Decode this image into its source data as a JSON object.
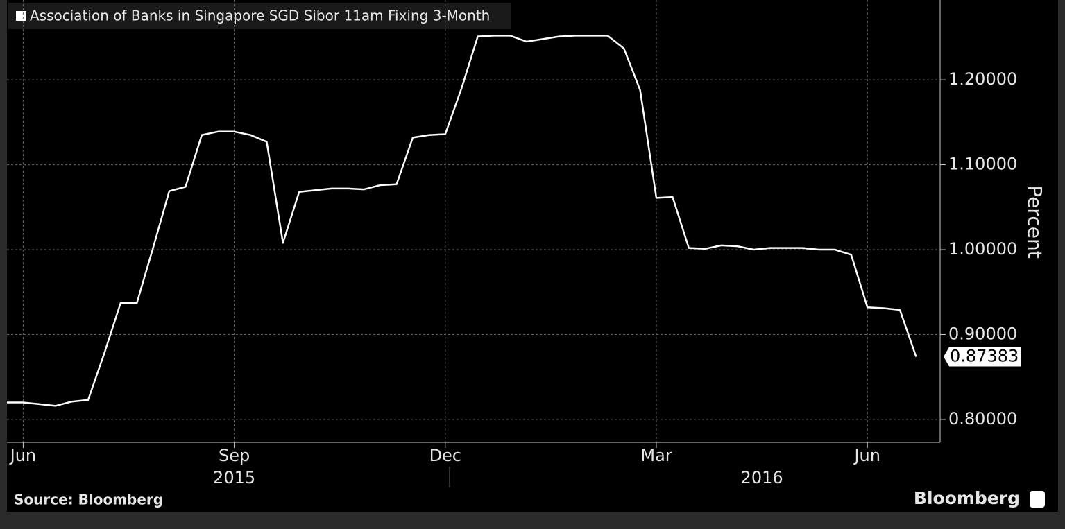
{
  "chart_data": {
    "type": "line",
    "series": [
      {
        "name": "Association of Banks in Singapore SGD Sibor 11am Fixing 3-Month",
        "color": "#ffffff",
        "values": [
          0.82,
          0.82,
          0.818,
          0.816,
          0.821,
          0.823,
          0.878,
          0.937,
          0.937,
          1.002,
          1.069,
          1.074,
          1.135,
          1.139,
          1.139,
          1.135,
          1.127,
          1.008,
          1.068,
          1.07,
          1.072,
          1.072,
          1.071,
          1.076,
          1.077,
          1.132,
          1.135,
          1.136,
          1.19,
          1.251,
          1.252,
          1.252,
          1.245,
          1.248,
          1.251,
          1.252,
          1.252,
          1.252,
          1.237,
          1.188,
          1.061,
          1.062,
          1.002,
          1.001,
          1.005,
          1.004,
          1.0,
          1.002,
          1.002,
          1.002,
          1.0,
          1.0,
          0.994,
          0.932,
          0.931,
          0.929,
          0.87383
        ],
        "value_labels": [
          null,
          null,
          null,
          null,
          null,
          null,
          null,
          null,
          null,
          null,
          null,
          null,
          null,
          null,
          null,
          null,
          null,
          null,
          null,
          null,
          null,
          null,
          null,
          null,
          null,
          null,
          null,
          null,
          null,
          null,
          null,
          null,
          null,
          null,
          null,
          null,
          null,
          null,
          null,
          null,
          null,
          null,
          null,
          null,
          null,
          null,
          null,
          null,
          null,
          null,
          null,
          null,
          null,
          null,
          null,
          null,
          "0.87383"
        ]
      }
    ],
    "categories": [
      null,
      "Jun",
      null,
      null,
      null,
      null,
      null,
      null,
      null,
      null,
      null,
      null,
      null,
      null,
      "Sep",
      null,
      null,
      null,
      null,
      null,
      null,
      null,
      null,
      null,
      null,
      null,
      null,
      "Dec",
      null,
      null,
      null,
      null,
      null,
      null,
      null,
      null,
      null,
      null,
      null,
      null,
      "Mar",
      null,
      null,
      null,
      null,
      null,
      null,
      null,
      null,
      null,
      null,
      null,
      null,
      "Jun",
      null,
      null,
      null
    ],
    "year_labels": [
      "2015",
      "2016"
    ],
    "ylabel": "Percent",
    "ylim": [
      0.773,
      1.294
    ],
    "yticks": [
      {
        "value": 0.8,
        "label": "0.80000"
      },
      {
        "value": 0.9,
        "label": "0.90000"
      },
      {
        "value": 1.0,
        "label": "1.00000"
      },
      {
        "value": 1.1,
        "label": "1.10000"
      },
      {
        "value": 1.2,
        "label": "1.20000"
      }
    ],
    "grid": true,
    "source": "Source: Bloomberg",
    "brand": "Bloomberg"
  }
}
